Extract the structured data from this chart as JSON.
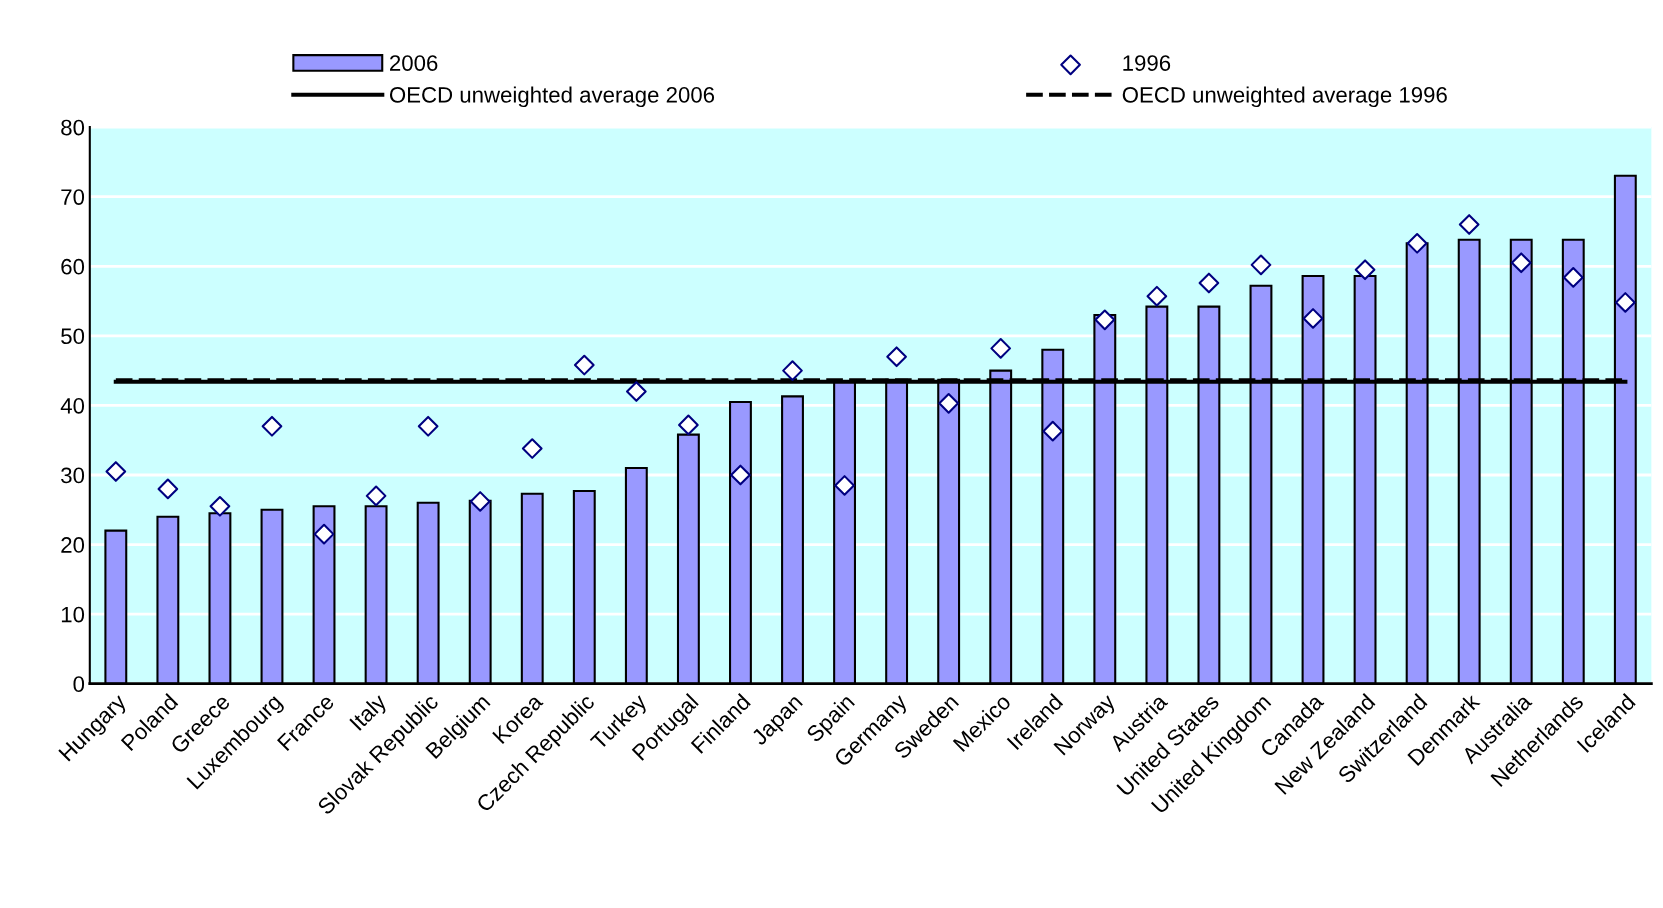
{
  "chart_data": {
    "type": "bar",
    "categories": [
      "Hungary",
      "Poland",
      "Greece",
      "Luxembourg",
      "France",
      "Italy",
      "Slovak Republic",
      "Belgium",
      "Korea",
      "Czech Republic",
      "Turkey",
      "Portugal",
      "Finland",
      "Japan",
      "Spain",
      "Germany",
      "Sweden",
      "Mexico",
      "Ireland",
      "Norway",
      "Austria",
      "United States",
      "United Kingdom",
      "Canada",
      "New Zealand",
      "Switzerland",
      "Denmark",
      "Australia",
      "Netherlands",
      "Iceland"
    ],
    "series": [
      {
        "name": "2006",
        "type": "bar",
        "color": "#9999ff",
        "values": [
          22,
          24,
          24.5,
          25,
          25.5,
          25.5,
          26,
          26.3,
          27.3,
          27.7,
          31,
          35.8,
          40.5,
          41.3,
          43.5,
          43.7,
          43.7,
          45,
          48,
          53,
          54.2,
          54.2,
          57.2,
          58.6,
          58.6,
          63.3,
          63.8,
          63.8,
          63.8,
          73
        ]
      },
      {
        "name": "1996",
        "type": "scatter",
        "marker": "diamond",
        "color": "#000080",
        "values": [
          30.5,
          28,
          25.5,
          37,
          21.5,
          27,
          37,
          26.2,
          33.8,
          45.8,
          42,
          37.2,
          30,
          45,
          28.5,
          47,
          40.3,
          48.2,
          36.3,
          52.3,
          55.7,
          57.6,
          60.2,
          52.5,
          59.5,
          63.3,
          66,
          60.5,
          58.4,
          54.8
        ]
      }
    ],
    "ref_lines": [
      {
        "axis": "y",
        "value": 43.4,
        "label": "OECD unweighted average 2006",
        "color": "#000000",
        "line_style": "solid"
      },
      {
        "axis": "y",
        "value": 43.6,
        "label": "OECD unweighted average 1996",
        "color": "#000000",
        "line_style": "dashed"
      }
    ],
    "ylim": [
      0,
      80
    ],
    "yticks": [
      0,
      10,
      20,
      30,
      40,
      50,
      60,
      70,
      80
    ],
    "grid": "y",
    "legend": "top"
  }
}
